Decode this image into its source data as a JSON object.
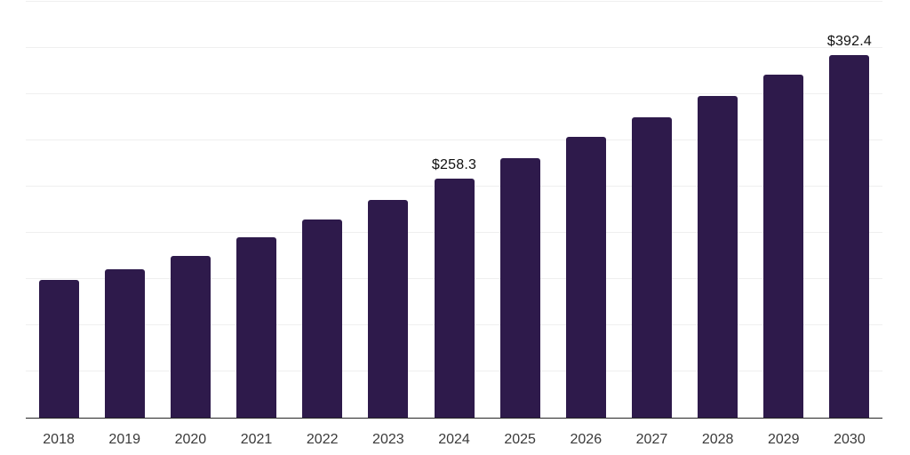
{
  "chart_data": {
    "type": "bar",
    "title": "",
    "xlabel": "",
    "ylabel": "",
    "categories": [
      "2018",
      "2019",
      "2020",
      "2021",
      "2022",
      "2023",
      "2024",
      "2025",
      "2026",
      "2027",
      "2028",
      "2029",
      "2030"
    ],
    "values": [
      149.3,
      160.2,
      174.7,
      194.9,
      214.1,
      235.9,
      258.3,
      280.5,
      303.6,
      325.4,
      347.9,
      370.9,
      392.4
    ],
    "data_labels": [
      {
        "category": "2024",
        "text": "$258.3"
      },
      {
        "category": "2030",
        "text": "$392.4"
      }
    ],
    "ylim": [
      0,
      450
    ],
    "grid_interval": 50,
    "grid": true,
    "legend": false,
    "y_tick_labels_visible": false,
    "colors": {
      "bar": "#2e1a4b",
      "gridline": "#efefef",
      "axis_line": "#262626",
      "tick_label": "#3a3a3a",
      "data_label": "#111111",
      "background": "#ffffff"
    }
  }
}
